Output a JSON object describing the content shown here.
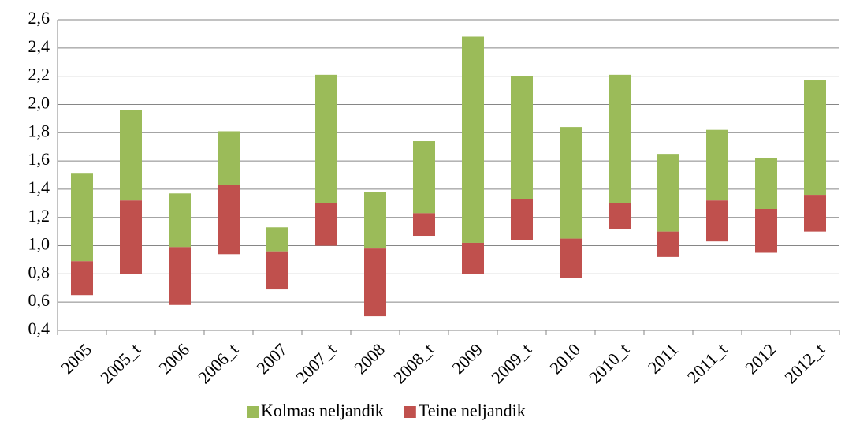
{
  "chart_data": {
    "type": "floating-bar",
    "categories": [
      "2005",
      "2005_t",
      "2006",
      "2006_t",
      "2007",
      "2007_t",
      "2008",
      "2008_t",
      "2009",
      "2009_t",
      "2010",
      "2010_t",
      "2011",
      "2011_t",
      "2012",
      "2012_t"
    ],
    "series": [
      {
        "name": "Kolmas neljandik",
        "color": "#9bbb59",
        "values": [
          [
            0.89,
            1.51
          ],
          [
            1.32,
            1.96
          ],
          [
            0.99,
            1.37
          ],
          [
            1.43,
            1.81
          ],
          [
            0.96,
            1.13
          ],
          [
            1.3,
            2.21
          ],
          [
            0.98,
            1.38
          ],
          [
            1.23,
            1.74
          ],
          [
            1.02,
            2.48
          ],
          [
            1.33,
            2.2
          ],
          [
            1.05,
            1.84
          ],
          [
            1.3,
            2.21
          ],
          [
            1.1,
            1.65
          ],
          [
            1.32,
            1.82
          ],
          [
            1.26,
            1.62
          ],
          [
            1.36,
            2.17
          ]
        ]
      },
      {
        "name": "Teine neljandik",
        "color": "#c0504d",
        "values": [
          [
            0.65,
            0.89
          ],
          [
            0.8,
            1.32
          ],
          [
            0.58,
            0.99
          ],
          [
            0.94,
            1.43
          ],
          [
            0.69,
            0.96
          ],
          [
            1.0,
            1.3
          ],
          [
            0.5,
            0.98
          ],
          [
            1.07,
            1.23
          ],
          [
            0.8,
            1.02
          ],
          [
            1.04,
            1.33
          ],
          [
            0.77,
            1.05
          ],
          [
            1.12,
            1.3
          ],
          [
            0.92,
            1.1
          ],
          [
            1.03,
            1.32
          ],
          [
            0.95,
            1.26
          ],
          [
            1.1,
            1.36
          ]
        ]
      }
    ],
    "ylim": [
      0.4,
      2.6
    ],
    "yticks": [
      {
        "value": 0.4,
        "label": "0,4"
      },
      {
        "value": 0.6,
        "label": "0,6"
      },
      {
        "value": 0.8,
        "label": "0,8"
      },
      {
        "value": 1.0,
        "label": "1,0"
      },
      {
        "value": 1.2,
        "label": "1,2"
      },
      {
        "value": 1.4,
        "label": "1,4"
      },
      {
        "value": 1.6,
        "label": "1,6"
      },
      {
        "value": 1.8,
        "label": "1,8"
      },
      {
        "value": 2.0,
        "label": "2,0"
      },
      {
        "value": 2.2,
        "label": "2,2"
      },
      {
        "value": 2.4,
        "label": "2,4"
      },
      {
        "value": 2.6,
        "label": "2,6"
      }
    ],
    "grid": true,
    "legend": "bottom"
  }
}
